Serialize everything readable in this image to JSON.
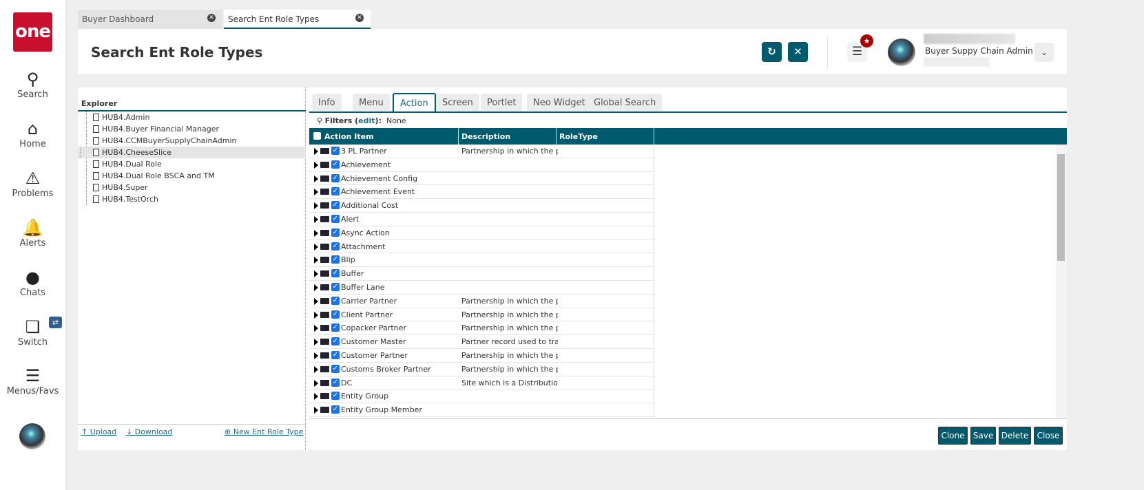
{
  "sidebar": {
    "logo": "one",
    "items": [
      {
        "label": "Search",
        "icon": "search-icon"
      },
      {
        "label": "Home",
        "icon": "home-icon"
      },
      {
        "label": "Problems",
        "icon": "warning-icon"
      },
      {
        "label": "Alerts",
        "icon": "bell-icon"
      },
      {
        "label": "Chats",
        "icon": "chat-icon"
      },
      {
        "label": "Switch",
        "icon": "switch-icon"
      },
      {
        "label": "Menus/Favs",
        "icon": "menu-icon"
      }
    ]
  },
  "browser_tabs": [
    {
      "label": "Buyer Dashboard"
    },
    {
      "label": "Search Ent Role Types",
      "active": true
    }
  ],
  "header": {
    "title": "Search Ent Role Types",
    "user_role": "Buyer Suppy Chain Admin"
  },
  "explorer": {
    "title": "Explorer",
    "items": [
      "HUB4.Admin",
      "HUB4.Buyer Financial Manager",
      "HUB4.CCMBuyerSupplyChainAdmin",
      "HUB4.CheeseSlice",
      "HUB4.Dual Role",
      "HUB4.Dual Role BSCA and TM",
      "HUB4.Super",
      "HUB4.TestOrch"
    ],
    "selected": "HUB4.CheeseSlice",
    "upload": "Upload",
    "download": "Download",
    "new": "New Ent Role Type"
  },
  "panel_tabs": [
    "Info",
    "Menu",
    "Action",
    "Screen",
    "Portlet",
    "Neo Widget",
    "Global Search"
  ],
  "active_tab": "Action",
  "filters": {
    "label": "Filters",
    "edit": "edit",
    "value": "None"
  },
  "grid": {
    "columns": [
      "Action Item",
      "Description",
      "RoleType"
    ],
    "rows": [
      [
        "3 PL Partner",
        "Partnership in which the par"
      ],
      [
        "Achievement",
        ""
      ],
      [
        "Achievement Config",
        ""
      ],
      [
        "Achievement Event",
        ""
      ],
      [
        "Additional Cost",
        ""
      ],
      [
        "Alert",
        ""
      ],
      [
        "Async Action",
        ""
      ],
      [
        "Attachment",
        ""
      ],
      [
        "Blip",
        ""
      ],
      [
        "Buffer",
        ""
      ],
      [
        "Buffer Lane",
        ""
      ],
      [
        "Carrier Partner",
        "Partnership in which the par"
      ],
      [
        "Client Partner",
        "Partnership in which the par"
      ],
      [
        "Copacker Partner",
        "Partnership in which the par"
      ],
      [
        "Customer Master",
        "Partner record used to track"
      ],
      [
        "Customer Partner",
        "Partnership in which the par"
      ],
      [
        "Customs Broker Partner",
        "Partnership in which the par"
      ],
      [
        "DC",
        "Site which is a Distribution C"
      ],
      [
        "Entity Group",
        ""
      ],
      [
        "Entity Group Member",
        ""
      ]
    ]
  },
  "actions": [
    "Clone",
    "Save",
    "Delete",
    "Close"
  ],
  "colors": {
    "accent": "#005a6e",
    "logo": "#c8102e"
  }
}
